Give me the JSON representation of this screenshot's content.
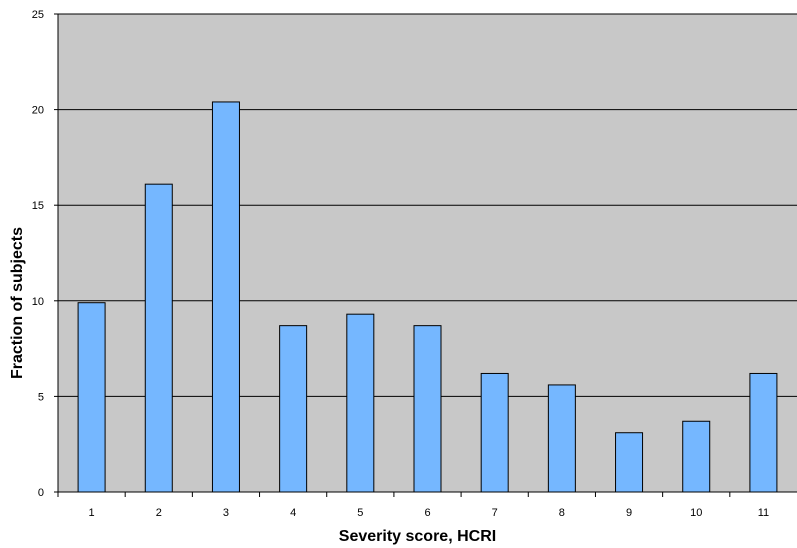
{
  "chart_data": {
    "type": "bar",
    "title": "",
    "xlabel": "Severity score, HCRI",
    "ylabel": "Fraction of subjects",
    "categories": [
      "1",
      "2",
      "3",
      "4",
      "5",
      "6",
      "7",
      "8",
      "9",
      "10",
      "11"
    ],
    "values": [
      9.9,
      16.1,
      20.4,
      8.7,
      9.3,
      8.7,
      6.2,
      5.6,
      3.1,
      3.7,
      6.2
    ],
    "ylim": [
      0,
      25
    ],
    "yticks": [
      "0",
      "5",
      "10",
      "15",
      "20",
      "25"
    ],
    "grid": true,
    "legend": "none",
    "colors": {
      "plot_background": "#c8c8c8",
      "bar_fill": "#75b7ff",
      "bar_stroke": "#000000",
      "gridline": "#000000"
    }
  }
}
